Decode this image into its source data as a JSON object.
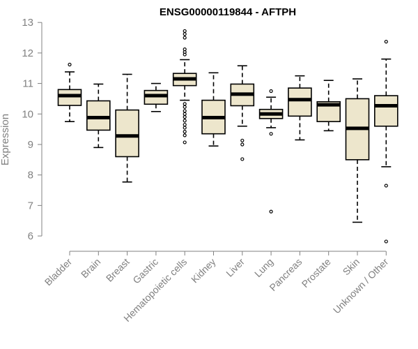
{
  "chart_data": {
    "type": "boxplot",
    "title": "ENSG00000119844 - AFTPH",
    "xlabel": "",
    "ylabel": "Expression",
    "ylim": [
      5.75,
      13.05
    ],
    "yticks": [
      6,
      7,
      8,
      9,
      10,
      11,
      12,
      13
    ],
    "box_fill": "#ede6cc",
    "grid": false,
    "categories": [
      "Bladder",
      "Brain",
      "Breast",
      "Gastric",
      "Hematopoietic cells",
      "Kidney",
      "Liver",
      "Lung",
      "Pancreas",
      "Prostate",
      "Skin",
      "Unknown / Other"
    ],
    "boxes": [
      {
        "whisker_low": 9.75,
        "q1": 10.28,
        "median": 10.6,
        "q3": 10.8,
        "whisker_high": 11.38,
        "outliers": [
          11.62
        ]
      },
      {
        "whisker_low": 8.9,
        "q1": 9.47,
        "median": 9.88,
        "q3": 10.43,
        "whisker_high": 10.98,
        "outliers": []
      },
      {
        "whisker_low": 7.77,
        "q1": 8.6,
        "median": 9.28,
        "q3": 10.13,
        "whisker_high": 11.3,
        "outliers": []
      },
      {
        "whisker_low": 10.08,
        "q1": 10.32,
        "median": 10.6,
        "q3": 10.77,
        "whisker_high": 11.0,
        "outliers": []
      },
      {
        "whisker_low": 10.45,
        "q1": 10.93,
        "median": 11.15,
        "q3": 11.33,
        "whisker_high": 11.78,
        "outliers": [
          12.72,
          12.62,
          12.5,
          12.12,
          12.03,
          11.95,
          10.33,
          10.23,
          10.1,
          10.0,
          9.9,
          9.78,
          9.65,
          9.55,
          9.42,
          9.3,
          9.07
        ]
      },
      {
        "whisker_low": 8.95,
        "q1": 9.35,
        "median": 9.88,
        "q3": 10.45,
        "whisker_high": 11.35,
        "outliers": []
      },
      {
        "whisker_low": 9.6,
        "q1": 10.27,
        "median": 10.65,
        "q3": 10.98,
        "whisker_high": 11.58,
        "outliers": [
          9.13,
          9.0,
          8.52
        ]
      },
      {
        "whisker_low": 9.55,
        "q1": 9.85,
        "median": 10.0,
        "q3": 10.15,
        "whisker_high": 10.55,
        "outliers": [
          10.75,
          9.35,
          6.8
        ]
      },
      {
        "whisker_low": 9.15,
        "q1": 9.93,
        "median": 10.47,
        "q3": 10.85,
        "whisker_high": 11.25,
        "outliers": []
      },
      {
        "whisker_low": 9.45,
        "q1": 9.75,
        "median": 10.3,
        "q3": 10.4,
        "whisker_high": 11.1,
        "outliers": []
      },
      {
        "whisker_low": 6.45,
        "q1": 8.5,
        "median": 9.53,
        "q3": 10.5,
        "whisker_high": 11.15,
        "outliers": []
      },
      {
        "whisker_low": 8.27,
        "q1": 9.6,
        "median": 10.27,
        "q3": 10.6,
        "whisker_high": 11.8,
        "outliers": [
          12.37,
          7.65,
          5.82
        ]
      }
    ]
  }
}
